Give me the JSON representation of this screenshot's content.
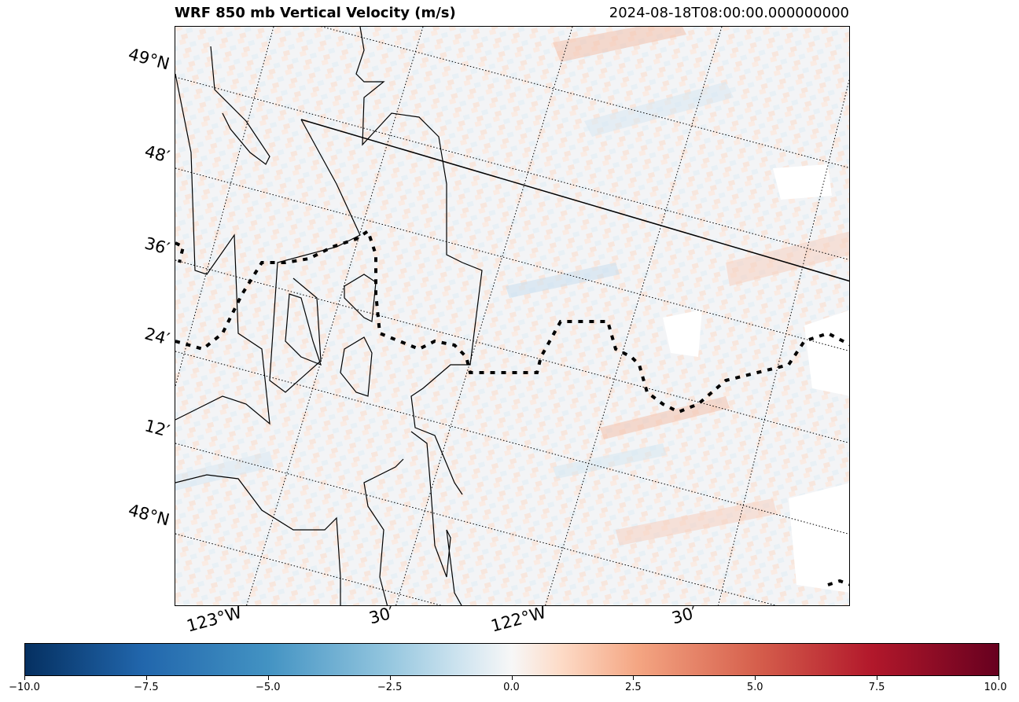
{
  "title": "WRF 850 mb Vertical Velocity (m/s)",
  "timestamp": "2024-08-18T08:00:00.000000000",
  "map": {
    "lat_labels": [
      "49°N",
      "48′",
      "36′",
      "24′",
      "12′",
      "48°N"
    ],
    "lon_labels": [
      "123°W",
      "30′",
      "122°W",
      "30′"
    ]
  },
  "colorbar": {
    "ticks": [
      "−10.0",
      "−7.5",
      "−5.0",
      "−2.5",
      "0.0",
      "2.5",
      "5.0",
      "7.5",
      "10.0"
    ],
    "range": [
      -10.0,
      10.0
    ],
    "colormap": "RdBu_r",
    "low_color": "#053061",
    "mid_color": "#f7f7f7",
    "high_color": "#67001f"
  }
}
